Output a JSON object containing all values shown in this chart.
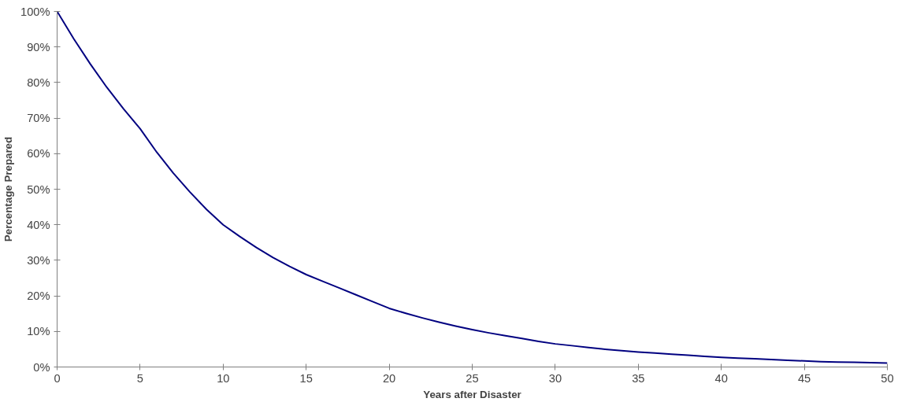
{
  "chart_data": {
    "type": "line",
    "xlabel": "Years after Disaster",
    "ylabel": "Percentage Prepared",
    "x": [
      0,
      1,
      2,
      3,
      4,
      5,
      6,
      7,
      8,
      9,
      10,
      11,
      12,
      13,
      14,
      15,
      16,
      17,
      18,
      19,
      20,
      21,
      22,
      23,
      24,
      25,
      26,
      27,
      28,
      29,
      30,
      31,
      32,
      33,
      34,
      35,
      36,
      37,
      38,
      39,
      40,
      41,
      42,
      43,
      44,
      45,
      46,
      47,
      48,
      49,
      50
    ],
    "series": [
      {
        "color": "#000080",
        "values": [
          100,
          92.3,
          85.2,
          78.6,
          72.6,
          67,
          60.4,
          54.5,
          49.2,
          44.3,
          40,
          36.7,
          33.6,
          30.8,
          28.3,
          26,
          24.1,
          22.2,
          20.3,
          18.4,
          16.5,
          15.1,
          13.8,
          12.6,
          11.5,
          10.5,
          9.6,
          8.8,
          8,
          7.2,
          6.5,
          6,
          5.5,
          5,
          4.6,
          4.2,
          3.9,
          3.6,
          3.3,
          3,
          2.7,
          2.5,
          2.3,
          2.1,
          1.9,
          1.7,
          1.5,
          1.4,
          1.3,
          1.2,
          1.1
        ]
      }
    ],
    "xlim": [
      0,
      50
    ],
    "xticks": [
      0,
      5,
      10,
      15,
      20,
      25,
      30,
      35,
      40,
      45,
      50
    ],
    "ylim": [
      0,
      100
    ],
    "yticks": [
      {
        "value": 0,
        "label": "0%"
      },
      {
        "value": 10,
        "label": "10%"
      },
      {
        "value": 20,
        "label": "20%"
      },
      {
        "value": 30,
        "label": "30%"
      },
      {
        "value": 40,
        "label": "40%"
      },
      {
        "value": 50,
        "label": "50%"
      },
      {
        "value": 60,
        "label": "60%"
      },
      {
        "value": 70,
        "label": "70%"
      },
      {
        "value": 80,
        "label": "80%"
      },
      {
        "value": 90,
        "label": "90%"
      },
      {
        "value": 100,
        "label": "100%"
      }
    ],
    "grid": false,
    "marker": "none",
    "line_style": "solid"
  }
}
